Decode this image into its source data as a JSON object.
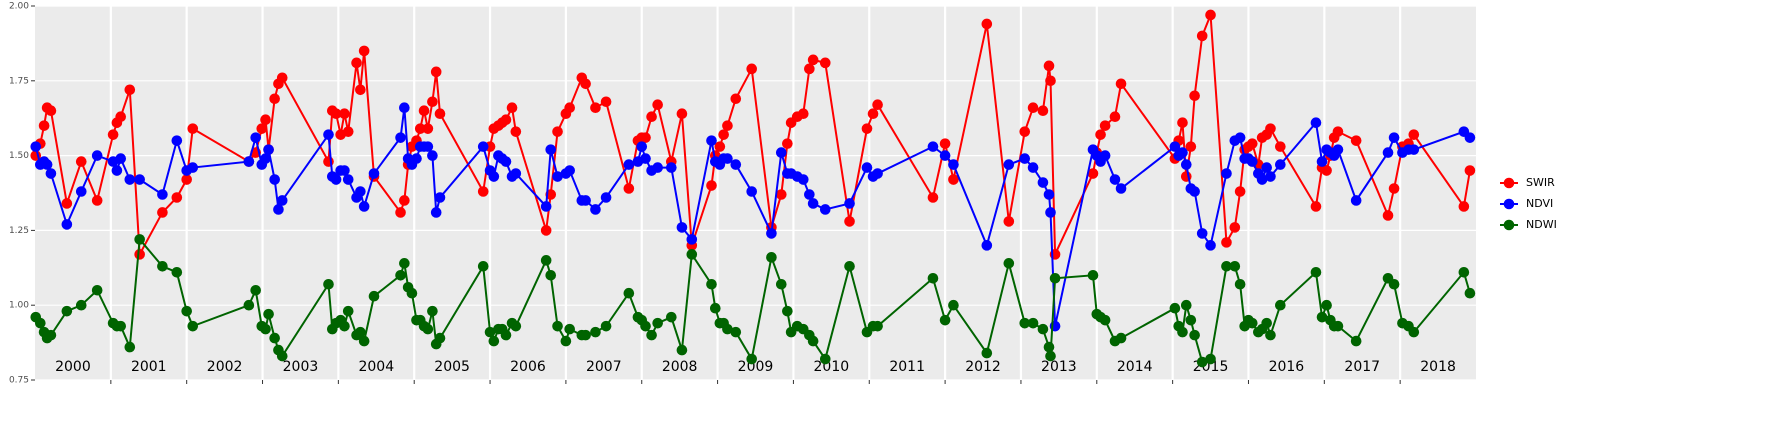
{
  "chart_data": {
    "type": "line",
    "x": [
      2000.01,
      2000.07,
      2000.12,
      2000.16,
      2000.21,
      2000.42,
      2000.61,
      2000.82,
      2001.03,
      2001.08,
      2001.13,
      2001.25,
      2001.38,
      2001.68,
      2001.87,
      2002.0,
      2002.08,
      2002.82,
      2002.91,
      2002.99,
      2003.04,
      2003.08,
      2003.16,
      2003.21,
      2003.26,
      2003.87,
      2003.92,
      2003.97,
      2004.03,
      2004.08,
      2004.13,
      2004.24,
      2004.29,
      2004.34,
      2004.47,
      2004.82,
      2004.87,
      2004.92,
      2004.97,
      2005.03,
      2005.08,
      2005.13,
      2005.18,
      2005.24,
      2005.29,
      2005.34,
      2005.91,
      2006.0,
      2006.05,
      2006.11,
      2006.16,
      2006.21,
      2006.29,
      2006.34,
      2006.74,
      2006.8,
      2006.89,
      2007.0,
      2007.05,
      2007.21,
      2007.26,
      2007.39,
      2007.53,
      2007.83,
      2007.95,
      2008.0,
      2008.05,
      2008.13,
      2008.21,
      2008.39,
      2008.53,
      2008.66,
      2008.92,
      2008.97,
      2009.03,
      2009.08,
      2009.13,
      2009.24,
      2009.45,
      2009.71,
      2009.84,
      2009.92,
      2009.97,
      2010.05,
      2010.13,
      2010.21,
      2010.26,
      2010.42,
      2010.74,
      2010.97,
      2011.05,
      2011.11,
      2011.84,
      2012.0,
      2012.11,
      2012.55,
      2012.84,
      2013.05,
      2013.16,
      2013.29,
      2013.37,
      2013.39,
      2013.45,
      2013.95,
      2014.0,
      2014.05,
      2014.11,
      2014.24,
      2014.32,
      2015.03,
      2015.08,
      2015.13,
      2015.18,
      2015.24,
      2015.29,
      2015.39,
      2015.5,
      2015.71,
      2015.82,
      2015.89,
      2015.95,
      2016.0,
      2016.05,
      2016.13,
      2016.18,
      2016.24,
      2016.29,
      2016.42,
      2016.89,
      2016.97,
      2017.03,
      2017.08,
      2017.13,
      2017.18,
      2017.42,
      2017.84,
      2017.92,
      2018.03,
      2018.11,
      2018.18,
      2018.84,
      2018.92
    ],
    "series": [
      {
        "name": "SWIR",
        "color": "#ff0000",
        "values": [
          1.5,
          1.54,
          1.6,
          1.66,
          1.65,
          1.34,
          1.48,
          1.35,
          1.57,
          1.61,
          1.63,
          1.72,
          1.17,
          1.31,
          1.36,
          1.42,
          1.59,
          1.48,
          1.51,
          1.59,
          1.62,
          1.52,
          1.69,
          1.74,
          1.76,
          1.48,
          1.65,
          1.64,
          1.57,
          1.64,
          1.58,
          1.81,
          1.72,
          1.85,
          1.43,
          1.31,
          1.35,
          1.47,
          1.53,
          1.55,
          1.59,
          1.65,
          1.59,
          1.68,
          1.78,
          1.64,
          1.38,
          1.53,
          1.59,
          1.6,
          1.61,
          1.62,
          1.66,
          1.58,
          1.25,
          1.37,
          1.58,
          1.64,
          1.66,
          1.76,
          1.74,
          1.66,
          1.68,
          1.39,
          1.55,
          1.56,
          1.56,
          1.63,
          1.67,
          1.48,
          1.64,
          1.2,
          1.4,
          1.5,
          1.53,
          1.57,
          1.6,
          1.69,
          1.79,
          1.26,
          1.37,
          1.54,
          1.61,
          1.63,
          1.64,
          1.79,
          1.82,
          1.81,
          1.28,
          1.59,
          1.64,
          1.67,
          1.36,
          1.54,
          1.42,
          1.94,
          1.28,
          1.58,
          1.66,
          1.65,
          1.8,
          1.75,
          1.17,
          1.44,
          1.51,
          1.57,
          1.6,
          1.63,
          1.74,
          1.49,
          1.55,
          1.61,
          1.43,
          1.53,
          1.7,
          1.9,
          1.97,
          1.21,
          1.26,
          1.38,
          1.52,
          1.53,
          1.54,
          1.47,
          1.56,
          1.57,
          1.59,
          1.53,
          1.33,
          1.46,
          1.45,
          1.5,
          1.56,
          1.58,
          1.55,
          1.3,
          1.39,
          1.53,
          1.54,
          1.57,
          1.33,
          1.45
        ]
      },
      {
        "name": "NDVI",
        "color": "#0000ff",
        "values": [
          1.53,
          1.47,
          1.48,
          1.47,
          1.44,
          1.27,
          1.38,
          1.5,
          1.48,
          1.45,
          1.49,
          1.42,
          1.42,
          1.37,
          1.55,
          1.45,
          1.46,
          1.48,
          1.56,
          1.47,
          1.49,
          1.52,
          1.42,
          1.32,
          1.35,
          1.57,
          1.43,
          1.42,
          1.45,
          1.45,
          1.42,
          1.36,
          1.38,
          1.33,
          1.44,
          1.56,
          1.66,
          1.49,
          1.47,
          1.49,
          1.53,
          1.53,
          1.53,
          1.5,
          1.31,
          1.36,
          1.53,
          1.45,
          1.43,
          1.5,
          1.49,
          1.48,
          1.43,
          1.44,
          1.33,
          1.52,
          1.43,
          1.44,
          1.45,
          1.35,
          1.35,
          1.32,
          1.36,
          1.47,
          1.48,
          1.53,
          1.49,
          1.45,
          1.46,
          1.46,
          1.26,
          1.22,
          1.55,
          1.48,
          1.47,
          1.49,
          1.49,
          1.47,
          1.38,
          1.24,
          1.51,
          1.44,
          1.44,
          1.43,
          1.42,
          1.37,
          1.34,
          1.32,
          1.34,
          1.46,
          1.43,
          1.44,
          1.53,
          1.5,
          1.47,
          1.2,
          1.47,
          1.49,
          1.46,
          1.41,
          1.37,
          1.31,
          0.93,
          1.52,
          1.5,
          1.48,
          1.5,
          1.42,
          1.39,
          1.53,
          1.5,
          1.51,
          1.47,
          1.39,
          1.38,
          1.24,
          1.2,
          1.44,
          1.55,
          1.56,
          1.49,
          1.49,
          1.48,
          1.44,
          1.42,
          1.46,
          1.43,
          1.47,
          1.61,
          1.48,
          1.52,
          1.51,
          1.5,
          1.52,
          1.35,
          1.51,
          1.56,
          1.51,
          1.52,
          1.52,
          1.58,
          1.56
        ]
      },
      {
        "name": "NDWI",
        "color": "#006400",
        "values": [
          0.96,
          0.94,
          0.91,
          0.89,
          0.9,
          0.98,
          1.0,
          1.05,
          0.94,
          0.93,
          0.93,
          0.86,
          1.22,
          1.13,
          1.11,
          0.98,
          0.93,
          1.0,
          1.05,
          0.93,
          0.92,
          0.97,
          0.89,
          0.85,
          0.83,
          1.07,
          0.92,
          0.94,
          0.95,
          0.93,
          0.98,
          0.9,
          0.91,
          0.88,
          1.03,
          1.1,
          1.14,
          1.06,
          1.04,
          0.95,
          0.95,
          0.93,
          0.92,
          0.98,
          0.87,
          0.89,
          1.13,
          0.91,
          0.88,
          0.92,
          0.92,
          0.9,
          0.94,
          0.93,
          1.15,
          1.1,
          0.93,
          0.88,
          0.92,
          0.9,
          0.9,
          0.91,
          0.93,
          1.04,
          0.96,
          0.95,
          0.93,
          0.9,
          0.94,
          0.96,
          0.85,
          1.17,
          1.07,
          0.99,
          0.94,
          0.94,
          0.92,
          0.91,
          0.82,
          1.16,
          1.07,
          0.98,
          0.91,
          0.93,
          0.92,
          0.9,
          0.88,
          0.82,
          1.13,
          0.91,
          0.93,
          0.93,
          1.09,
          0.95,
          1.0,
          0.84,
          1.14,
          0.94,
          0.94,
          0.92,
          0.86,
          0.83,
          1.09,
          1.1,
          0.97,
          0.96,
          0.95,
          0.88,
          0.89,
          0.99,
          0.93,
          0.91,
          1.0,
          0.95,
          0.9,
          0.81,
          0.82,
          1.13,
          1.13,
          1.07,
          0.93,
          0.95,
          0.94,
          0.91,
          0.92,
          0.94,
          0.9,
          1.0,
          1.11,
          0.96,
          1.0,
          0.95,
          0.93,
          0.93,
          0.88,
          1.09,
          1.07,
          0.94,
          0.93,
          0.91,
          1.11,
          1.04
        ]
      }
    ],
    "xlim": [
      2000,
      2019
    ],
    "vlines": [
      2001,
      2002,
      2003,
      2004,
      2005,
      2006,
      2007,
      2008,
      2009,
      2010,
      2011,
      2012,
      2013,
      2014,
      2015,
      2016,
      2017,
      2018
    ],
    "year_labels": [
      "2000",
      "2001",
      "2002",
      "2003",
      "2004",
      "2005",
      "2006",
      "2007",
      "2008",
      "2009",
      "2010",
      "2011",
      "2012",
      "2013",
      "2014",
      "2015",
      "2016",
      "2017",
      "2018"
    ],
    "ylim": [
      0.75,
      2.0
    ],
    "yticks": [
      {
        "value": 0.75,
        "label": "0.75"
      },
      {
        "value": 1.0,
        "label": "1.00"
      },
      {
        "value": 1.25,
        "label": "1.25"
      },
      {
        "value": 1.5,
        "label": "1.50"
      },
      {
        "value": 1.75,
        "label": "1.75"
      },
      {
        "value": 2.0,
        "label": "2.00"
      }
    ],
    "grid": true,
    "legend": "right"
  }
}
